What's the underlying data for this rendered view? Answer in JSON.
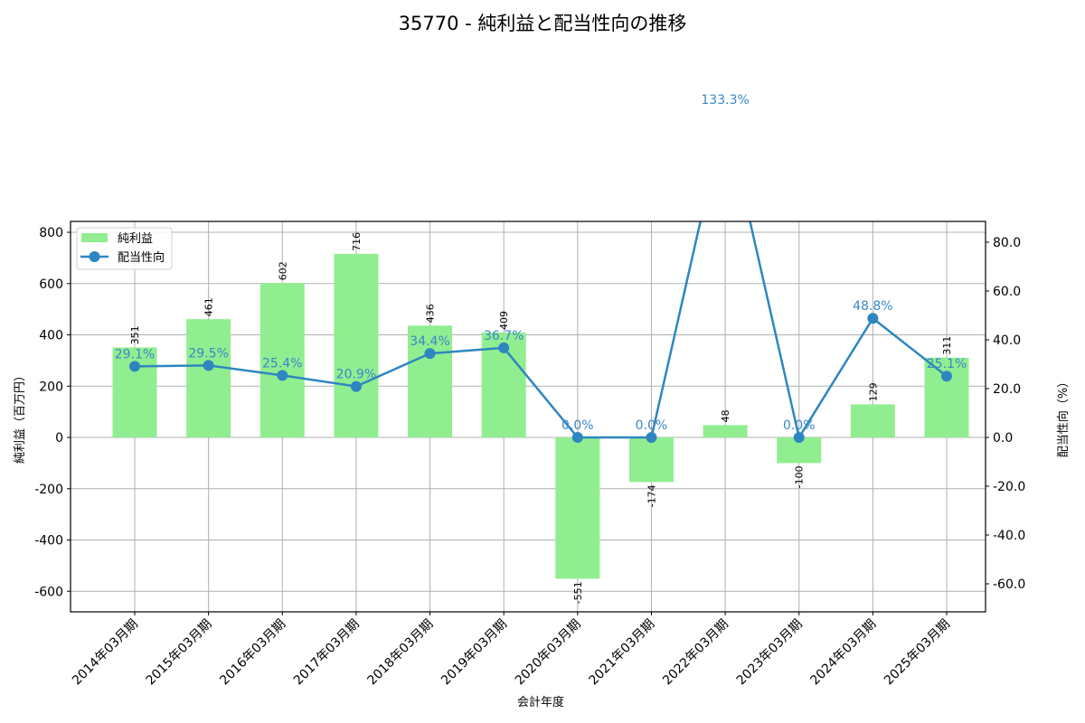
{
  "chart_data": {
    "type": "bar+line",
    "title": "35770 - 純利益と配当性向の推移",
    "xlabel": "会計年度",
    "ylabel_left": "純利益（百万円）",
    "ylabel_right": "配当性向（%）",
    "categories": [
      "2014年03月期",
      "2015年03月期",
      "2016年03月期",
      "2017年03月期",
      "2018年03月期",
      "2019年03月期",
      "2020年03月期",
      "2021年03月期",
      "2022年03月期",
      "2023年03月期",
      "2024年03月期",
      "2025年03月期"
    ],
    "series": [
      {
        "name": "純利益",
        "type": "bar",
        "axis": "left",
        "color": "#90ee90",
        "values": [
          351,
          461,
          602,
          716,
          436,
          409,
          -551,
          -174,
          48,
          -100,
          129,
          311
        ],
        "labels": [
          "351",
          "461",
          "602",
          "716",
          "436",
          "409",
          "-551",
          "-174",
          "48",
          "-100",
          "129",
          "311"
        ]
      },
      {
        "name": "配当性向",
        "type": "line",
        "axis": "right",
        "color": "#2e86c1",
        "values": [
          29.1,
          29.5,
          25.4,
          20.9,
          34.4,
          36.7,
          0.0,
          0.0,
          133.3,
          0.0,
          48.8,
          25.1
        ],
        "labels": [
          "29.1%",
          "29.5%",
          "25.4%",
          "20.9%",
          "34.4%",
          "36.7%",
          "0.0%",
          "0.0%",
          "133.3%",
          "0.0%",
          "48.8%",
          "25.1%"
        ]
      }
    ],
    "ylim_left": [
      -680,
      840
    ],
    "ylim_right": [
      -71.7,
      89.3
    ],
    "yticks_left": [
      "-600",
      "-400",
      "-200",
      "0",
      "200",
      "400",
      "600",
      "800"
    ],
    "yticks_right": [
      "-60.0",
      "-40.0",
      "-20.0",
      "0.0",
      "20.0",
      "40.0",
      "60.0",
      "80.0"
    ],
    "legend": {
      "position": "upper left",
      "entries": [
        "純利益",
        "配当性向"
      ]
    },
    "grid": true
  }
}
